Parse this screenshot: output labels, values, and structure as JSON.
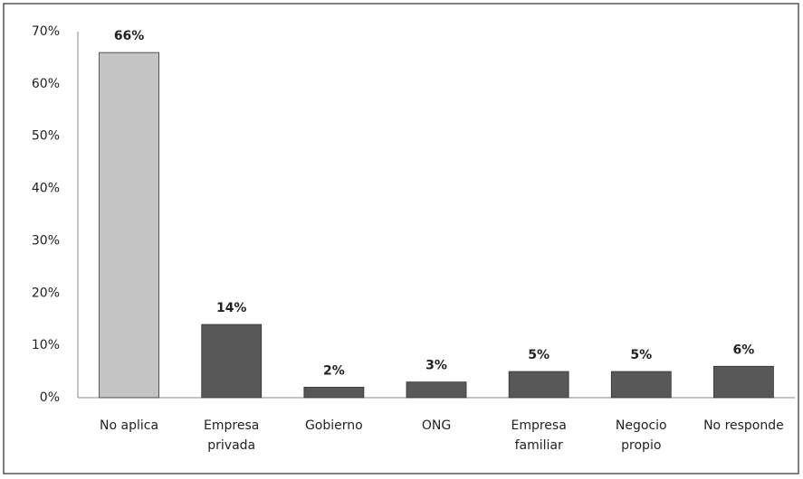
{
  "chart_data": {
    "type": "bar",
    "categories": [
      "No aplica",
      "Empresa privada",
      "Gobierno",
      "ONG",
      "Empresa familiar",
      "Negocio propio",
      "No responde"
    ],
    "values": [
      66,
      14,
      2,
      3,
      5,
      5,
      6
    ],
    "value_labels": [
      "66%",
      "14%",
      "2%",
      "3%",
      "5%",
      "5%",
      "6%"
    ],
    "colors": [
      "#c4c4c4",
      "#585858",
      "#585858",
      "#585858",
      "#585858",
      "#585858",
      "#585858"
    ],
    "ylim": [
      0,
      70
    ],
    "yticks": [
      {
        "value": 0,
        "label": "0%"
      },
      {
        "value": 10,
        "label": "10%"
      },
      {
        "value": 20,
        "label": "20%"
      },
      {
        "value": 30,
        "label": "30%"
      },
      {
        "value": 40,
        "label": "40%"
      },
      {
        "value": 50,
        "label": "50%"
      },
      {
        "value": 60,
        "label": "60%"
      },
      {
        "value": 70,
        "label": "70%"
      }
    ],
    "grid": false
  }
}
